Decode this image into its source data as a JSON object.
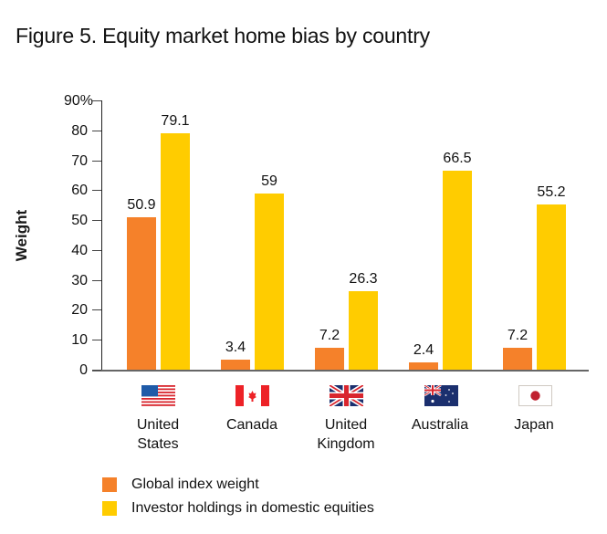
{
  "title": "Figure 5. Equity market home bias by country",
  "colors": {
    "global_index": "#F5812A",
    "domestic_holdings": "#FFCC00",
    "axis": "#222222"
  },
  "chart_data": {
    "type": "bar",
    "title": "Figure 5. Equity market home bias by country",
    "xlabel": "",
    "ylabel": "Weight",
    "ylim": [
      0,
      90
    ],
    "yticks": [
      "0",
      "10",
      "20",
      "30",
      "40",
      "50",
      "60",
      "70",
      "80",
      "90%"
    ],
    "grid": false,
    "legend_position": "bottom",
    "categories": [
      "United States",
      "Canada",
      "United Kingdom",
      "Australia",
      "Japan"
    ],
    "category_labels": [
      [
        "United",
        "States"
      ],
      [
        "Canada"
      ],
      [
        "United",
        "Kingdom"
      ],
      [
        "Australia"
      ],
      [
        "Japan"
      ]
    ],
    "flags": [
      "us-flag-icon",
      "canada-flag-icon",
      "uk-flag-icon",
      "australia-flag-icon",
      "japan-flag-icon"
    ],
    "series": [
      {
        "name": "Global index weight",
        "color": "#F5812A",
        "values": [
          50.9,
          3.4,
          7.2,
          2.4,
          7.2
        ],
        "labels": [
          "50.9",
          "3.4",
          "7.2",
          "2.4",
          "7.2"
        ]
      },
      {
        "name": "Investor holdings in domestic equities",
        "color": "#FFCC00",
        "values": [
          79.1,
          59,
          26.3,
          66.5,
          55.2
        ],
        "labels": [
          "79.1",
          "59",
          "26.3",
          "66.5",
          "55.2"
        ]
      }
    ]
  },
  "legend": [
    {
      "label": "Global index weight",
      "color": "#F5812A"
    },
    {
      "label": "Investor holdings in domestic equities",
      "color": "#FFCC00"
    }
  ]
}
